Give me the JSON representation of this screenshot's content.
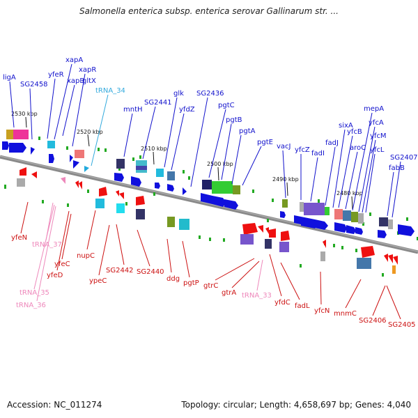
{
  "header": {
    "title": "Salmonella enterica subsp. enterica serovar Gallinarum str. ..."
  },
  "footer": {
    "accession": "Accession: NC_011274",
    "summary": "Topology: circular; Length: 4,658,697 bp; Genes: 4,040"
  },
  "colors": {
    "backbone": "#888888",
    "forward_gene": "#1010dd",
    "reverse_gene": "#ee1010",
    "forward_label": "#1010cc",
    "reverse_label": "#cc1010",
    "trna_forward": "#33aadd",
    "trna_reverse": "#ee88bb",
    "tick": "#22aa22"
  },
  "position_markers": [
    "2530 kbp",
    "2520 kbp",
    "2510 kbp",
    "2500 kbp",
    "2490 kbp",
    "2480 kbp"
  ],
  "forward_labels": [
    "ligA",
    "SG2458",
    "yfeR",
    "xapA",
    "xapB",
    "xapR",
    "gltX",
    "tRNA_34",
    "mntH",
    "SG2441",
    "glk",
    "yfdZ",
    "SG2436",
    "pgtC",
    "pgtB",
    "pgtA",
    "pgtE",
    "vacJ",
    "yfcZ",
    "fadI",
    "fadJ",
    "sixA",
    "yfcB",
    "aroC",
    "mepA",
    "yfcA",
    "yfcM",
    "yfcL",
    "SG2407",
    "fabB"
  ],
  "reverse_labels": [
    "yfeN",
    "tRNA_37",
    "yfeC",
    "yfeD",
    "tRNA_35",
    "tRNA_36",
    "nupC",
    "ypeC",
    "SG2442",
    "SG2440",
    "ddg",
    "pgtP",
    "gtrC",
    "gtrA",
    "tRNA_33",
    "yfdC",
    "fadL",
    "yfcN",
    "mnmC",
    "SG2406",
    "SG2405"
  ]
}
